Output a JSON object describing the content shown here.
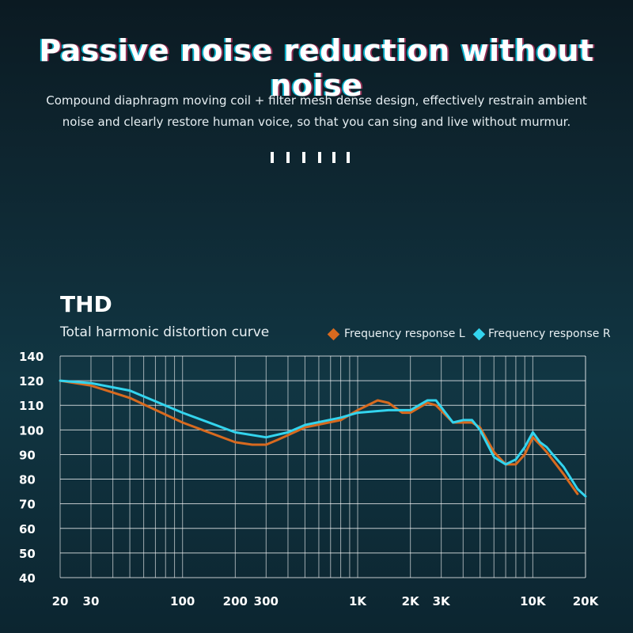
{
  "header": {
    "headline": "Passive noise reduction without noise",
    "description_line1": "Compound diaphragm moving coil + filter mesh dense design, effectively restrain ambient",
    "description_line2": "noise and clearly restore human voice, so that you can sing and live without murmur."
  },
  "colors": {
    "series_l": "#d86a1f",
    "series_r": "#33d4ee",
    "grid": "#ffffff",
    "text": "#ffffff"
  },
  "chart_data": {
    "type": "line",
    "title": "THD",
    "subtitle": "Total harmonic distortion curve",
    "xlabel": "",
    "ylabel": "",
    "x_scale": "log",
    "xlim": [
      20,
      20000
    ],
    "ylim": [
      40,
      140
    ],
    "yticks": [
      140,
      120,
      110,
      100,
      90,
      80,
      70,
      60,
      50,
      40
    ],
    "ytick_labels": [
      "140",
      "120",
      "110",
      "100",
      "90",
      "80",
      "70",
      "60",
      "50",
      "40"
    ],
    "xticks": [
      20,
      30,
      100,
      200,
      300,
      1000,
      2000,
      3000,
      10000,
      20000
    ],
    "xtick_labels": [
      "20",
      "30",
      "100",
      "200",
      "300",
      "1K",
      "2K",
      "3K",
      "10K",
      "20K"
    ],
    "grid": true,
    "legend_position": "top-right",
    "series": [
      {
        "name": "Frequency response L",
        "x": [
          20,
          30,
          50,
          100,
          200,
          250,
          300,
          350,
          500,
          800,
          1000,
          1300,
          1500,
          1800,
          2000,
          2500,
          2800,
          3500,
          4000,
          4500,
          5000,
          6000,
          7000,
          8000,
          9000,
          10000,
          11000,
          12000,
          15000,
          18000
        ],
        "values": [
          120,
          118,
          113,
          103,
          95,
          94,
          94,
          96,
          101,
          104,
          108,
          112,
          111,
          107,
          107,
          111,
          110,
          103,
          103,
          103,
          101,
          91,
          86,
          86,
          90,
          97,
          94,
          91,
          82,
          74
        ]
      },
      {
        "name": "Frequency response R",
        "x": [
          20,
          30,
          50,
          100,
          200,
          300,
          400,
          500,
          800,
          1000,
          1500,
          2000,
          2500,
          2800,
          3500,
          4000,
          4500,
          5000,
          6000,
          7000,
          8000,
          9000,
          10000,
          11000,
          12000,
          13000,
          15000,
          18000,
          20000
        ],
        "values": [
          120,
          119,
          116,
          107,
          99,
          97,
          99,
          102,
          105,
          107,
          108,
          108,
          112,
          112,
          103,
          104,
          104,
          100,
          89,
          86,
          88,
          93,
          99,
          95,
          93,
          90,
          85,
          76,
          73
        ]
      }
    ]
  }
}
